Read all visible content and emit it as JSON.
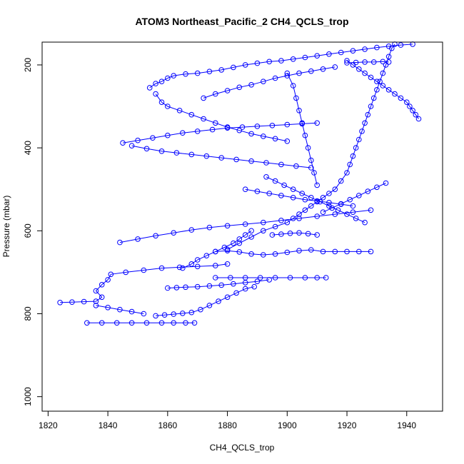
{
  "chart_data": {
    "type": "scatter",
    "title": "ATOM3 Northeast_Pacific_2 CH4_QCLS_trop",
    "xlabel": "CH4_QCLS_trop",
    "ylabel": "Pressure (mbar)",
    "xlim": [
      1818,
      1952
    ],
    "ylim": [
      1035,
      145
    ],
    "y_reversed": true,
    "x_ticks": [
      1820,
      1840,
      1860,
      1880,
      1900,
      1920,
      1940
    ],
    "y_ticks": [
      200,
      400,
      600,
      800,
      1000
    ],
    "grid": false,
    "marker": "open-circle",
    "color": "#0000ff",
    "series": [
      {
        "points": [
          [
            1824,
            773
          ],
          [
            1828,
            772
          ],
          [
            1832,
            771
          ],
          [
            1836,
            770
          ],
          [
            1838,
            760
          ],
          [
            1836,
            745
          ],
          [
            1838,
            730
          ],
          [
            1840,
            718
          ],
          [
            1841,
            705
          ],
          [
            1846,
            700
          ],
          [
            1852,
            695
          ],
          [
            1858,
            690
          ],
          [
            1864,
            688
          ],
          [
            1870,
            686
          ],
          [
            1876,
            684
          ],
          [
            1880,
            680
          ]
        ]
      },
      {
        "points": [
          [
            1833,
            822
          ],
          [
            1838,
            822
          ],
          [
            1843,
            822
          ],
          [
            1848,
            822
          ],
          [
            1853,
            822
          ],
          [
            1858,
            822
          ],
          [
            1862,
            822
          ],
          [
            1866,
            822
          ],
          [
            1869,
            822
          ]
        ]
      },
      {
        "points": [
          [
            1856,
            805
          ],
          [
            1859,
            803
          ],
          [
            1862,
            801
          ],
          [
            1865,
            799
          ],
          [
            1868,
            797
          ],
          [
            1871,
            790
          ],
          [
            1874,
            780
          ],
          [
            1877,
            770
          ],
          [
            1880,
            760
          ],
          [
            1883,
            750
          ],
          [
            1886,
            740
          ],
          [
            1889,
            735
          ]
        ]
      },
      {
        "points": [
          [
            1860,
            738
          ],
          [
            1863,
            737
          ],
          [
            1866,
            736
          ],
          [
            1870,
            735
          ],
          [
            1874,
            733
          ],
          [
            1878,
            731
          ],
          [
            1882,
            728
          ],
          [
            1886,
            725
          ],
          [
            1890,
            722
          ],
          [
            1894,
            718
          ]
        ]
      },
      {
        "points": [
          [
            1876,
            713
          ],
          [
            1881,
            713
          ],
          [
            1886,
            713
          ],
          [
            1891,
            713
          ],
          [
            1896,
            713
          ],
          [
            1901,
            713
          ],
          [
            1906,
            713
          ],
          [
            1910,
            713
          ],
          [
            1913,
            713
          ]
        ]
      },
      {
        "points": [
          [
            1844,
            628
          ],
          [
            1850,
            620
          ],
          [
            1856,
            612
          ],
          [
            1862,
            605
          ],
          [
            1868,
            598
          ],
          [
            1874,
            592
          ],
          [
            1880,
            588
          ],
          [
            1886,
            584
          ],
          [
            1892,
            580
          ],
          [
            1898,
            575
          ],
          [
            1904,
            570
          ],
          [
            1910,
            565
          ],
          [
            1916,
            560
          ],
          [
            1922,
            555
          ],
          [
            1928,
            550
          ]
        ]
      },
      {
        "points": [
          [
            1876,
            650
          ],
          [
            1880,
            648
          ],
          [
            1884,
            651
          ],
          [
            1888,
            656
          ],
          [
            1892,
            658
          ],
          [
            1896,
            656
          ],
          [
            1900,
            652
          ],
          [
            1904,
            648
          ],
          [
            1908,
            646
          ],
          [
            1912,
            650
          ],
          [
            1916,
            650
          ],
          [
            1920,
            650
          ],
          [
            1924,
            650
          ],
          [
            1928,
            650
          ]
        ]
      },
      {
        "points": [
          [
            1880,
            645
          ],
          [
            1884,
            630
          ],
          [
            1888,
            615
          ],
          [
            1892,
            600
          ],
          [
            1896,
            590
          ],
          [
            1900,
            580
          ],
          [
            1902,
            570
          ],
          [
            1904,
            560
          ],
          [
            1906,
            550
          ],
          [
            1908,
            540
          ],
          [
            1910,
            530
          ],
          [
            1912,
            520
          ],
          [
            1914,
            510
          ],
          [
            1916,
            500
          ],
          [
            1918,
            480
          ],
          [
            1920,
            460
          ],
          [
            1921,
            440
          ],
          [
            1922,
            420
          ],
          [
            1923,
            400
          ],
          [
            1924,
            380
          ],
          [
            1925,
            360
          ],
          [
            1926,
            340
          ],
          [
            1927,
            320
          ],
          [
            1928,
            300
          ],
          [
            1929,
            280
          ],
          [
            1930,
            260
          ],
          [
            1931,
            240
          ],
          [
            1932,
            220
          ],
          [
            1933,
            200
          ],
          [
            1934,
            180
          ],
          [
            1935,
            160
          ],
          [
            1936,
            150
          ]
        ]
      },
      {
        "points": [
          [
            1845,
            388
          ],
          [
            1850,
            382
          ],
          [
            1855,
            376
          ],
          [
            1860,
            370
          ],
          [
            1865,
            364
          ],
          [
            1870,
            360
          ],
          [
            1875,
            356
          ],
          [
            1880,
            352
          ],
          [
            1885,
            350
          ],
          [
            1890,
            348
          ],
          [
            1895,
            346
          ],
          [
            1900,
            344
          ],
          [
            1905,
            342
          ],
          [
            1910,
            340
          ]
        ]
      },
      {
        "points": [
          [
            1848,
            395
          ],
          [
            1853,
            402
          ],
          [
            1858,
            408
          ],
          [
            1863,
            412
          ],
          [
            1868,
            416
          ],
          [
            1873,
            420
          ],
          [
            1878,
            424
          ],
          [
            1883,
            428
          ],
          [
            1888,
            432
          ],
          [
            1893,
            436
          ],
          [
            1898,
            440
          ],
          [
            1903,
            444
          ],
          [
            1908,
            448
          ]
        ]
      },
      {
        "points": [
          [
            1854,
            255
          ],
          [
            1856,
            245
          ],
          [
            1858,
            240
          ],
          [
            1860,
            232
          ],
          [
            1862,
            226
          ],
          [
            1866,
            222
          ],
          [
            1870,
            220
          ],
          [
            1874,
            216
          ],
          [
            1878,
            212
          ],
          [
            1882,
            206
          ],
          [
            1886,
            200
          ],
          [
            1890,
            196
          ],
          [
            1894,
            192
          ],
          [
            1898,
            190
          ],
          [
            1902,
            186
          ],
          [
            1906,
            182
          ],
          [
            1910,
            178
          ],
          [
            1914,
            174
          ],
          [
            1918,
            170
          ],
          [
            1922,
            166
          ],
          [
            1926,
            162
          ],
          [
            1930,
            158
          ],
          [
            1934,
            155
          ],
          [
            1938,
            152
          ],
          [
            1942,
            150
          ]
        ]
      },
      {
        "points": [
          [
            1856,
            270
          ],
          [
            1858,
            290
          ],
          [
            1860,
            300
          ],
          [
            1864,
            310
          ],
          [
            1868,
            320
          ],
          [
            1872,
            330
          ],
          [
            1876,
            340
          ],
          [
            1880,
            350
          ],
          [
            1884,
            358
          ],
          [
            1888,
            366
          ],
          [
            1892,
            372
          ],
          [
            1896,
            378
          ],
          [
            1900,
            384
          ]
        ]
      },
      {
        "points": [
          [
            1872,
            280
          ],
          [
            1876,
            270
          ],
          [
            1880,
            262
          ],
          [
            1884,
            254
          ],
          [
            1888,
            248
          ],
          [
            1892,
            240
          ],
          [
            1896,
            232
          ],
          [
            1900,
            226
          ],
          [
            1904,
            220
          ],
          [
            1908,
            215
          ],
          [
            1912,
            210
          ],
          [
            1916,
            205
          ]
        ]
      },
      {
        "points": [
          [
            1893,
            470
          ],
          [
            1896,
            480
          ],
          [
            1899,
            490
          ],
          [
            1902,
            500
          ],
          [
            1905,
            510
          ],
          [
            1908,
            520
          ],
          [
            1911,
            530
          ],
          [
            1914,
            540
          ],
          [
            1917,
            550
          ],
          [
            1920,
            560
          ],
          [
            1923,
            570
          ],
          [
            1926,
            580
          ]
        ]
      },
      {
        "points": [
          [
            1886,
            500
          ],
          [
            1890,
            505
          ],
          [
            1894,
            510
          ],
          [
            1898,
            515
          ],
          [
            1902,
            520
          ],
          [
            1906,
            525
          ],
          [
            1910,
            528
          ],
          [
            1914,
            532
          ],
          [
            1918,
            536
          ],
          [
            1922,
            540
          ]
        ]
      },
      {
        "points": [
          [
            1900,
            220
          ],
          [
            1902,
            250
          ],
          [
            1903,
            280
          ],
          [
            1904,
            310
          ],
          [
            1905,
            340
          ],
          [
            1906,
            370
          ],
          [
            1907,
            400
          ],
          [
            1908,
            430
          ],
          [
            1909,
            460
          ],
          [
            1910,
            490
          ]
        ]
      },
      {
        "points": [
          [
            1920,
            190
          ],
          [
            1922,
            200
          ],
          [
            1924,
            210
          ],
          [
            1926,
            220
          ],
          [
            1928,
            230
          ],
          [
            1930,
            240
          ],
          [
            1932,
            250
          ],
          [
            1934,
            260
          ],
          [
            1936,
            270
          ],
          [
            1938,
            280
          ],
          [
            1940,
            290
          ],
          [
            1941,
            300
          ],
          [
            1942,
            310
          ],
          [
            1943,
            320
          ],
          [
            1944,
            330
          ]
        ]
      },
      {
        "points": [
          [
            1920,
            195
          ],
          [
            1923,
            194
          ],
          [
            1926,
            193
          ],
          [
            1929,
            193
          ],
          [
            1932,
            192
          ],
          [
            1934,
            193
          ]
        ]
      },
      {
        "points": [
          [
            1865,
            690
          ],
          [
            1868,
            680
          ],
          [
            1870,
            670
          ],
          [
            1873,
            660
          ],
          [
            1876,
            650
          ],
          [
            1879,
            640
          ],
          [
            1882,
            630
          ],
          [
            1884,
            620
          ],
          [
            1886,
            610
          ],
          [
            1888,
            600
          ]
        ]
      },
      {
        "points": [
          [
            1836,
            780
          ],
          [
            1840,
            785
          ],
          [
            1844,
            790
          ],
          [
            1848,
            795
          ],
          [
            1852,
            800
          ]
        ]
      },
      {
        "points": [
          [
            1895,
            610
          ],
          [
            1898,
            608
          ],
          [
            1901,
            606
          ],
          [
            1904,
            605
          ],
          [
            1907,
            607
          ],
          [
            1910,
            610
          ]
        ]
      },
      {
        "points": [
          [
            1912,
            555
          ],
          [
            1915,
            545
          ],
          [
            1918,
            535
          ],
          [
            1921,
            525
          ],
          [
            1924,
            515
          ],
          [
            1927,
            505
          ],
          [
            1930,
            495
          ],
          [
            1933,
            485
          ]
        ]
      }
    ]
  }
}
